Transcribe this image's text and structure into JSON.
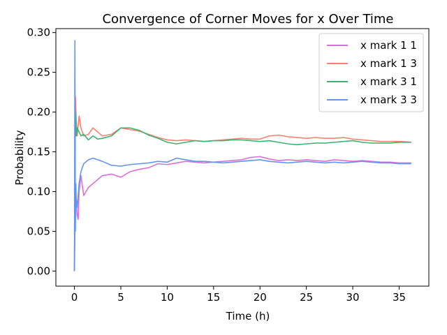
{
  "chart_data": {
    "type": "line",
    "title": "Convergence of Corner Moves for x Over Time",
    "xlabel": "Time (h)",
    "ylabel": "Probability",
    "xlim": [
      -2.0,
      38.2
    ],
    "ylim": [
      -0.019,
      0.305
    ],
    "xticks": [
      0,
      5,
      10,
      15,
      20,
      25,
      30,
      35
    ],
    "yticks": [
      0.0,
      0.05,
      0.1,
      0.15,
      0.2,
      0.25,
      0.3
    ],
    "xtick_labels": [
      "0",
      "5",
      "10",
      "15",
      "20",
      "25",
      "30",
      "35"
    ],
    "ytick_labels": [
      "0.00",
      "0.05",
      "0.10",
      "0.15",
      "0.20",
      "0.25",
      "0.30"
    ],
    "grid": false,
    "legend_position": "top-right",
    "series": [
      {
        "name": "x mark 1 1",
        "color": "#da70d6",
        "x": [
          0,
          0.05,
          0.1,
          0.2,
          0.3,
          0.4,
          0.5,
          0.7,
          1.0,
          1.5,
          2.0,
          2.5,
          3.0,
          4.0,
          5.0,
          6.0,
          7.0,
          8.0,
          9.0,
          10.0,
          11.0,
          12.0,
          13.0,
          14.0,
          15.0,
          16.0,
          17.0,
          18.0,
          19.0,
          20.0,
          21.0,
          22.0,
          23.0,
          24.0,
          25.0,
          26.0,
          27.0,
          28.0,
          29.0,
          30.0,
          31.0,
          32.0,
          33.0,
          34.0,
          35.0,
          36.3
        ],
        "y": [
          0.0,
          0.05,
          0.075,
          0.09,
          0.07,
          0.065,
          0.1,
          0.12,
          0.095,
          0.105,
          0.11,
          0.115,
          0.12,
          0.122,
          0.118,
          0.125,
          0.128,
          0.13,
          0.135,
          0.134,
          0.136,
          0.138,
          0.137,
          0.136,
          0.137,
          0.138,
          0.139,
          0.14,
          0.143,
          0.144,
          0.141,
          0.139,
          0.14,
          0.139,
          0.14,
          0.139,
          0.138,
          0.14,
          0.139,
          0.138,
          0.139,
          0.138,
          0.137,
          0.137,
          0.136,
          0.136
        ]
      },
      {
        "name": "x mark 1 3",
        "color": "#fa8072",
        "x": [
          0,
          0.05,
          0.1,
          0.2,
          0.3,
          0.5,
          0.7,
          1.0,
          1.5,
          2.0,
          2.5,
          3.0,
          4.0,
          5.0,
          6.0,
          7.0,
          8.0,
          9.0,
          10.0,
          11.0,
          12.0,
          13.0,
          14.0,
          15.0,
          16.0,
          17.0,
          18.0,
          19.0,
          20.0,
          21.0,
          22.0,
          23.0,
          24.0,
          25.0,
          26.0,
          27.0,
          28.0,
          29.0,
          30.0,
          31.0,
          32.0,
          33.0,
          34.0,
          35.0,
          36.3
        ],
        "y": [
          0.0,
          0.12,
          0.22,
          0.19,
          0.17,
          0.195,
          0.18,
          0.17,
          0.172,
          0.18,
          0.175,
          0.17,
          0.172,
          0.18,
          0.178,
          0.176,
          0.172,
          0.168,
          0.165,
          0.164,
          0.165,
          0.164,
          0.163,
          0.164,
          0.165,
          0.166,
          0.167,
          0.166,
          0.166,
          0.17,
          0.171,
          0.169,
          0.168,
          0.167,
          0.168,
          0.167,
          0.167,
          0.168,
          0.166,
          0.165,
          0.164,
          0.163,
          0.163,
          0.163,
          0.162
        ]
      },
      {
        "name": "x mark 3 1",
        "color": "#3cb371",
        "x": [
          0,
          0.05,
          0.1,
          0.2,
          0.3,
          0.5,
          0.7,
          1.0,
          1.5,
          2.0,
          2.5,
          3.0,
          4.0,
          5.0,
          6.0,
          7.0,
          8.0,
          9.0,
          10.0,
          11.0,
          12.0,
          13.0,
          14.0,
          15.0,
          16.0,
          17.0,
          18.0,
          19.0,
          20.0,
          21.0,
          22.0,
          23.0,
          24.0,
          25.0,
          26.0,
          27.0,
          28.0,
          29.0,
          30.0,
          31.0,
          32.0,
          33.0,
          34.0,
          35.0,
          36.3
        ],
        "y": [
          0.0,
          0.08,
          0.2,
          0.17,
          0.18,
          0.175,
          0.17,
          0.172,
          0.165,
          0.17,
          0.166,
          0.167,
          0.17,
          0.18,
          0.18,
          0.177,
          0.171,
          0.167,
          0.162,
          0.16,
          0.162,
          0.164,
          0.163,
          0.164,
          0.164,
          0.165,
          0.165,
          0.164,
          0.163,
          0.164,
          0.162,
          0.16,
          0.159,
          0.16,
          0.161,
          0.161,
          0.162,
          0.163,
          0.164,
          0.162,
          0.161,
          0.161,
          0.161,
          0.162,
          0.162
        ]
      },
      {
        "name": "x mark 3 3",
        "color": "#6495ed",
        "x": [
          0,
          0.05,
          0.1,
          0.15,
          0.2,
          0.3,
          0.5,
          0.7,
          1.0,
          1.5,
          2.0,
          2.5,
          3.0,
          4.0,
          5.0,
          6.0,
          7.0,
          8.0,
          9.0,
          10.0,
          11.0,
          12.0,
          13.0,
          14.0,
          15.0,
          16.0,
          17.0,
          18.0,
          19.0,
          20.0,
          21.0,
          22.0,
          23.0,
          24.0,
          25.0,
          26.0,
          27.0,
          28.0,
          29.0,
          30.0,
          31.0,
          32.0,
          33.0,
          34.0,
          35.0,
          36.3
        ],
        "y": [
          0.0,
          0.29,
          0.05,
          0.11,
          0.09,
          0.08,
          0.11,
          0.125,
          0.135,
          0.14,
          0.142,
          0.14,
          0.138,
          0.133,
          0.132,
          0.134,
          0.135,
          0.136,
          0.138,
          0.137,
          0.142,
          0.14,
          0.138,
          0.138,
          0.137,
          0.136,
          0.137,
          0.138,
          0.139,
          0.14,
          0.138,
          0.137,
          0.136,
          0.137,
          0.138,
          0.137,
          0.136,
          0.137,
          0.136,
          0.137,
          0.138,
          0.137,
          0.136,
          0.136,
          0.135,
          0.135
        ]
      }
    ]
  }
}
